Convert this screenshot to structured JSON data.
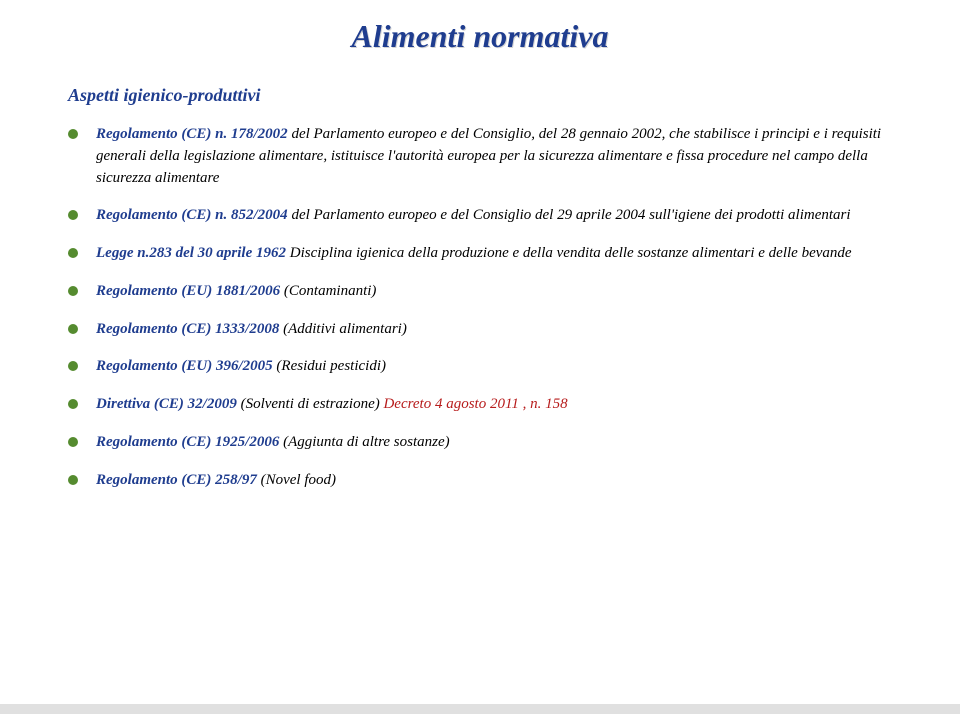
{
  "title": "Alimenti normativa",
  "subtitle": "Aspetti igienico-produttivi",
  "colors": {
    "title_color": "#1f3d8f",
    "blue_bold": "#1f3d8f",
    "red_text": "#b71c1c",
    "black_text": "#000000",
    "bullet": "#558b2f",
    "background": "#ffffff"
  },
  "typography": {
    "title_fontsize": 32,
    "subtitle_fontsize": 18,
    "body_fontsize": 15,
    "font_family": "Georgia, Times New Roman, serif",
    "italic": true
  },
  "items": [
    {
      "lead": "Regolamento (CE) n. 178/2002",
      "body": " del Parlamento europeo e del Consiglio, del 28 gennaio 2002, che stabilisce i principi e i requisiti generali della legislazione alimentare, istituisce l'autorità europea per la sicurezza alimentare e fissa procedure nel campo della sicurezza alimentare"
    },
    {
      "lead": "Regolamento (CE) n. 852/2004",
      "body": " del Parlamento europeo e del Consiglio del 29 aprile 2004 sull'igiene dei prodotti alimentari"
    },
    {
      "lead": "Legge n.283 del 30 aprile 1962",
      "body": " Disciplina igienica della produzione e della vendita delle sostanze alimentari e delle bevande"
    },
    {
      "lead": "Regolamento  (EU) 1881/2006",
      "body": " (Contaminanti)"
    },
    {
      "lead": "Regolamento (CE) 1333/2008",
      "body": " (Additivi alimentari)"
    },
    {
      "lead": "Regolamento (EU) 396/2005",
      "body": " (Residui pesticidi)"
    },
    {
      "lead": "Direttiva (CE) 32/2009",
      "body_parts": [
        {
          "text": "  (Solventi di estrazione) ",
          "class": "black-text"
        },
        {
          "text": "Decreto 4 agosto 2011 , n. 158",
          "class": "red-text"
        }
      ]
    },
    {
      "lead": "Regolamento (CE) 1925/2006",
      "body": " (Aggiunta di altre sostanze)"
    },
    {
      "lead": "Regolamento (CE) 258/97",
      "body": " (Novel food)"
    }
  ]
}
